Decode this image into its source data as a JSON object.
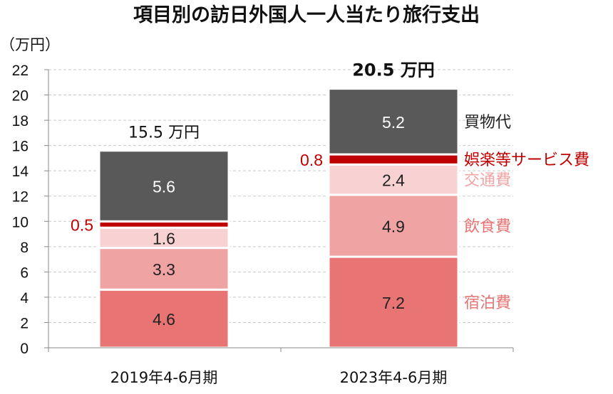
{
  "chart_data": {
    "type": "bar",
    "stacked": true,
    "title": "項目別の訪日外国人一人当たり旅行支出",
    "unit_label": "（万円）",
    "ylim": [
      0,
      22
    ],
    "yticks": [
      0,
      2,
      4,
      6,
      8,
      10,
      12,
      14,
      16,
      18,
      20,
      22
    ],
    "grid": true,
    "legend_placement": "right of last bar",
    "categories": [
      "2019年4-6月期",
      "2023年4-6月期"
    ],
    "totals": [
      "15.5 万円",
      "20.5 万円"
    ],
    "series": [
      {
        "name": "宿泊費",
        "values": [
          4.6,
          7.2
        ],
        "color": "#e87474",
        "label_color": "#222222",
        "legend_color": "#e87474"
      },
      {
        "name": "飲食費",
        "values": [
          3.3,
          4.9
        ],
        "color": "#f0a3a3",
        "label_color": "#222222",
        "legend_color": "#e87474"
      },
      {
        "name": "交通費",
        "values": [
          1.6,
          2.4
        ],
        "color": "#f8d2d2",
        "label_color": "#222222",
        "legend_color": "#f0a3a3"
      },
      {
        "name": "娯楽等サービス費",
        "values": [
          0.5,
          0.8
        ],
        "color": "#c00000",
        "label_color": "#c00000",
        "legend_color": "#c00000",
        "label_outside": true
      },
      {
        "name": "買物代",
        "values": [
          5.6,
          5.2
        ],
        "color": "#595959",
        "label_color": "#ffffff",
        "legend_color": "#222222"
      }
    ]
  }
}
